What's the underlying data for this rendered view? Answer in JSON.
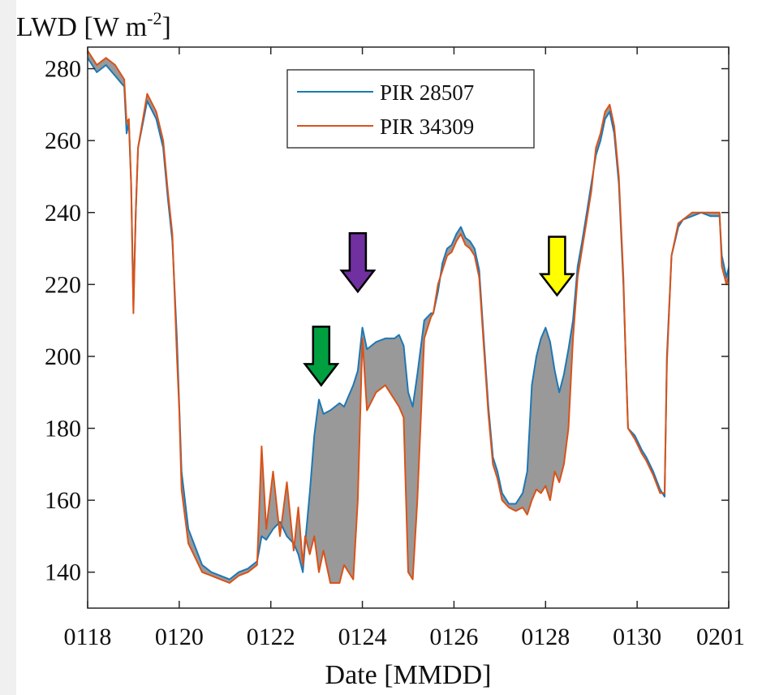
{
  "chart_data": {
    "type": "line",
    "title": "",
    "ylabel_main": "LWD [W m",
    "ylabel_exp": "-2",
    "ylabel_close": "]",
    "xlabel": "Date [MMDD]",
    "x_tick_labels": [
      "0118",
      "0120",
      "0122",
      "0124",
      "0126",
      "0128",
      "0130",
      "0201"
    ],
    "x_tick_days": [
      0,
      2,
      4,
      6,
      8,
      10,
      12,
      14
    ],
    "xlim": [
      0,
      14
    ],
    "y_ticks": [
      140,
      160,
      180,
      200,
      220,
      240,
      260,
      280
    ],
    "ylim": [
      130,
      286
    ],
    "grid": false,
    "legend_position": "top-center",
    "series": [
      {
        "name": "PIR 28507",
        "color": "#1f77b4",
        "points": [
          [
            0,
            283
          ],
          [
            0.2,
            279
          ],
          [
            0.4,
            281
          ],
          [
            0.6,
            278
          ],
          [
            0.8,
            275
          ],
          [
            0.85,
            262
          ],
          [
            0.9,
            265
          ],
          [
            0.95,
            248
          ],
          [
            1.0,
            214
          ],
          [
            1.05,
            240
          ],
          [
            1.1,
            258
          ],
          [
            1.3,
            271
          ],
          [
            1.5,
            266
          ],
          [
            1.65,
            258
          ],
          [
            1.75,
            244
          ],
          [
            1.85,
            232
          ],
          [
            1.95,
            205
          ],
          [
            2.05,
            168
          ],
          [
            2.2,
            152
          ],
          [
            2.35,
            147
          ],
          [
            2.5,
            142
          ],
          [
            2.7,
            140
          ],
          [
            2.9,
            139
          ],
          [
            3.1,
            138
          ],
          [
            3.3,
            140
          ],
          [
            3.5,
            141
          ],
          [
            3.7,
            143
          ],
          [
            3.8,
            150
          ],
          [
            3.9,
            149
          ],
          [
            4.05,
            152
          ],
          [
            4.2,
            154
          ],
          [
            4.35,
            150
          ],
          [
            4.5,
            148
          ],
          [
            4.6,
            145
          ],
          [
            4.7,
            140
          ],
          [
            4.75,
            148
          ],
          [
            4.85,
            162
          ],
          [
            4.95,
            178
          ],
          [
            5.05,
            188
          ],
          [
            5.15,
            184
          ],
          [
            5.3,
            185
          ],
          [
            5.5,
            187
          ],
          [
            5.6,
            186
          ],
          [
            5.8,
            192
          ],
          [
            5.9,
            196
          ],
          [
            6.0,
            208
          ],
          [
            6.1,
            202
          ],
          [
            6.3,
            204
          ],
          [
            6.5,
            205
          ],
          [
            6.7,
            205
          ],
          [
            6.8,
            206
          ],
          [
            6.9,
            203
          ],
          [
            7.0,
            190
          ],
          [
            7.1,
            186
          ],
          [
            7.2,
            195
          ],
          [
            7.35,
            210
          ],
          [
            7.5,
            212
          ],
          [
            7.55,
            212
          ],
          [
            7.65,
            218
          ],
          [
            7.75,
            226
          ],
          [
            7.85,
            230
          ],
          [
            7.95,
            231
          ],
          [
            8.05,
            234
          ],
          [
            8.15,
            236
          ],
          [
            8.25,
            233
          ],
          [
            8.35,
            232
          ],
          [
            8.45,
            230
          ],
          [
            8.55,
            224
          ],
          [
            8.65,
            205
          ],
          [
            8.75,
            186
          ],
          [
            8.85,
            172
          ],
          [
            8.95,
            168
          ],
          [
            9.05,
            162
          ],
          [
            9.2,
            159
          ],
          [
            9.35,
            159
          ],
          [
            9.5,
            162
          ],
          [
            9.6,
            168
          ],
          [
            9.7,
            192
          ],
          [
            9.8,
            200
          ],
          [
            9.9,
            205
          ],
          [
            10.0,
            208
          ],
          [
            10.1,
            204
          ],
          [
            10.2,
            196
          ],
          [
            10.3,
            190
          ],
          [
            10.4,
            195
          ],
          [
            10.5,
            202
          ],
          [
            10.6,
            210
          ],
          [
            10.7,
            225
          ],
          [
            10.8,
            232
          ],
          [
            10.9,
            240
          ],
          [
            11.0,
            248
          ],
          [
            11.1,
            256
          ],
          [
            11.2,
            260
          ],
          [
            11.3,
            266
          ],
          [
            11.4,
            268
          ],
          [
            11.5,
            262
          ],
          [
            11.6,
            248
          ],
          [
            11.7,
            220
          ],
          [
            11.75,
            200
          ],
          [
            11.8,
            180
          ],
          [
            11.95,
            178
          ],
          [
            12.1,
            174
          ],
          [
            12.2,
            172
          ],
          [
            12.35,
            168
          ],
          [
            12.5,
            163
          ],
          [
            12.6,
            161
          ],
          [
            12.65,
            200
          ],
          [
            12.75,
            228
          ],
          [
            12.9,
            236
          ],
          [
            13.0,
            238
          ],
          [
            13.2,
            239
          ],
          [
            13.4,
            240
          ],
          [
            13.6,
            239
          ],
          [
            13.8,
            239
          ],
          [
            13.85,
            228
          ],
          [
            13.95,
            222
          ],
          [
            14.1,
            230
          ],
          [
            14.2,
            236
          ],
          [
            14.3,
            232
          ]
        ]
      },
      {
        "name": "PIR 34309",
        "color": "#d95319",
        "points": [
          [
            0,
            285
          ],
          [
            0.2,
            281
          ],
          [
            0.4,
            283
          ],
          [
            0.6,
            281
          ],
          [
            0.8,
            277
          ],
          [
            0.85,
            265
          ],
          [
            0.9,
            266
          ],
          [
            0.95,
            248
          ],
          [
            1.0,
            212
          ],
          [
            1.05,
            240
          ],
          [
            1.1,
            258
          ],
          [
            1.3,
            273
          ],
          [
            1.5,
            268
          ],
          [
            1.65,
            260
          ],
          [
            1.75,
            246
          ],
          [
            1.85,
            234
          ],
          [
            1.95,
            200
          ],
          [
            2.0,
            185
          ],
          [
            2.05,
            163
          ],
          [
            2.2,
            148
          ],
          [
            2.35,
            144
          ],
          [
            2.5,
            140
          ],
          [
            2.7,
            139
          ],
          [
            2.9,
            138
          ],
          [
            3.1,
            137
          ],
          [
            3.3,
            139
          ],
          [
            3.5,
            140
          ],
          [
            3.7,
            142
          ],
          [
            3.8,
            175
          ],
          [
            3.9,
            152
          ],
          [
            4.05,
            168
          ],
          [
            4.2,
            150
          ],
          [
            4.35,
            165
          ],
          [
            4.5,
            146
          ],
          [
            4.6,
            158
          ],
          [
            4.7,
            142
          ],
          [
            4.75,
            150
          ],
          [
            4.85,
            145
          ],
          [
            4.95,
            150
          ],
          [
            5.05,
            140
          ],
          [
            5.15,
            146
          ],
          [
            5.3,
            137
          ],
          [
            5.5,
            137
          ],
          [
            5.6,
            142
          ],
          [
            5.8,
            138
          ],
          [
            5.9,
            160
          ],
          [
            6.0,
            205
          ],
          [
            6.1,
            185
          ],
          [
            6.3,
            190
          ],
          [
            6.5,
            192
          ],
          [
            6.7,
            188
          ],
          [
            6.8,
            186
          ],
          [
            6.9,
            183
          ],
          [
            7.0,
            140
          ],
          [
            7.1,
            138
          ],
          [
            7.2,
            160
          ],
          [
            7.35,
            205
          ],
          [
            7.5,
            211
          ],
          [
            7.55,
            212
          ],
          [
            7.65,
            220
          ],
          [
            7.75,
            224
          ],
          [
            7.85,
            228
          ],
          [
            7.95,
            229
          ],
          [
            8.05,
            232
          ],
          [
            8.15,
            234
          ],
          [
            8.25,
            231
          ],
          [
            8.35,
            230
          ],
          [
            8.45,
            228
          ],
          [
            8.55,
            222
          ],
          [
            8.65,
            203
          ],
          [
            8.75,
            184
          ],
          [
            8.85,
            170
          ],
          [
            8.95,
            166
          ],
          [
            9.05,
            160
          ],
          [
            9.2,
            158
          ],
          [
            9.35,
            157
          ],
          [
            9.5,
            158
          ],
          [
            9.6,
            156
          ],
          [
            9.7,
            160
          ],
          [
            9.8,
            163
          ],
          [
            9.9,
            162
          ],
          [
            10.0,
            164
          ],
          [
            10.1,
            160
          ],
          [
            10.2,
            168
          ],
          [
            10.3,
            165
          ],
          [
            10.4,
            170
          ],
          [
            10.5,
            180
          ],
          [
            10.6,
            205
          ],
          [
            10.7,
            222
          ],
          [
            10.8,
            230
          ],
          [
            10.9,
            238
          ],
          [
            11.0,
            246
          ],
          [
            11.1,
            258
          ],
          [
            11.2,
            262
          ],
          [
            11.3,
            268
          ],
          [
            11.4,
            270
          ],
          [
            11.5,
            264
          ],
          [
            11.6,
            250
          ],
          [
            11.7,
            222
          ],
          [
            11.75,
            200
          ],
          [
            11.8,
            180
          ],
          [
            11.95,
            177
          ],
          [
            12.1,
            173
          ],
          [
            12.2,
            171
          ],
          [
            12.35,
            167
          ],
          [
            12.5,
            162
          ],
          [
            12.6,
            162
          ],
          [
            12.65,
            198
          ],
          [
            12.75,
            228
          ],
          [
            12.9,
            237
          ],
          [
            13.0,
            238
          ],
          [
            13.2,
            240
          ],
          [
            13.4,
            240
          ],
          [
            13.6,
            240
          ],
          [
            13.8,
            240
          ],
          [
            13.85,
            225
          ],
          [
            13.95,
            220
          ],
          [
            14.1,
            226
          ],
          [
            14.2,
            238
          ],
          [
            14.3,
            230
          ]
        ]
      }
    ],
    "shaded_difference": {
      "color": "#999999"
    },
    "annotations": [
      {
        "type": "arrow",
        "color": "#00a040",
        "x": 5.1,
        "y": 192
      },
      {
        "type": "arrow",
        "color": "#7030a0",
        "x": 5.9,
        "y": 218
      },
      {
        "type": "arrow",
        "color": "#ffff00",
        "x": 10.25,
        "y": 217
      }
    ]
  }
}
